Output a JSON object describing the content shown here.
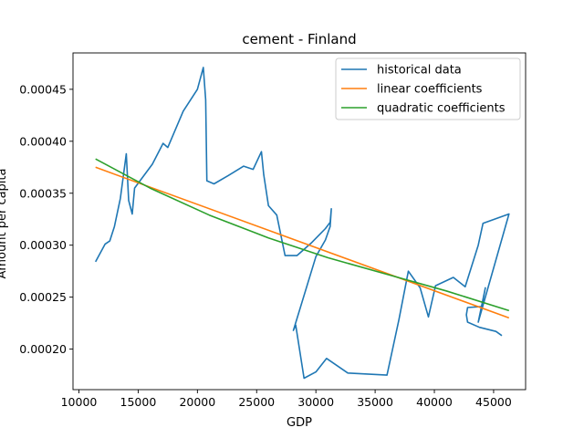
{
  "chart_data": {
    "type": "line",
    "title": "cement - Finland",
    "xlabel": "GDP",
    "ylabel": "Amount per capita",
    "xlim": [
      9500,
      47700
    ],
    "ylim": [
      0.000161,
      0.000485
    ],
    "xticks": [
      10000,
      15000,
      20000,
      25000,
      30000,
      35000,
      40000,
      45000
    ],
    "yticks": [
      0.0002,
      0.00025,
      0.0003,
      0.00035,
      0.0004,
      0.00045
    ],
    "xtick_labels": [
      "10000",
      "15000",
      "20000",
      "25000",
      "30000",
      "35000",
      "40000",
      "45000"
    ],
    "ytick_labels": [
      "0.00020",
      "0.00025",
      "0.00030",
      "0.00035",
      "0.00040",
      "0.00045"
    ],
    "grid": false,
    "legend_position": "upper right",
    "series": [
      {
        "name": "historical data",
        "color": "#1f77b4",
        "points": [
          [
            11400,
            0.000284
          ],
          [
            12200,
            0.000301
          ],
          [
            12600,
            0.000304
          ],
          [
            13000,
            0.000318
          ],
          [
            13500,
            0.000345
          ],
          [
            14000,
            0.000388
          ],
          [
            14200,
            0.000343
          ],
          [
            14500,
            0.00033
          ],
          [
            14700,
            0.000355
          ],
          [
            16200,
            0.000378
          ],
          [
            17100,
            0.000398
          ],
          [
            17500,
            0.000394
          ],
          [
            18800,
            0.000429
          ],
          [
            20000,
            0.00045
          ],
          [
            20500,
            0.000471
          ],
          [
            20700,
            0.00044
          ],
          [
            20800,
            0.000362
          ],
          [
            21400,
            0.000359
          ],
          [
            22600,
            0.000367
          ],
          [
            23900,
            0.000376
          ],
          [
            24700,
            0.000373
          ],
          [
            25400,
            0.00039
          ],
          [
            25600,
            0.000368
          ],
          [
            26000,
            0.000338
          ],
          [
            26700,
            0.000329
          ],
          [
            27400,
            0.00029
          ],
          [
            28400,
            0.00029
          ],
          [
            29600,
            0.000302
          ],
          [
            30800,
            0.000316
          ],
          [
            31200,
            0.000322
          ],
          [
            31300,
            0.000335
          ],
          [
            31200,
            0.000318
          ],
          [
            30800,
            0.000305
          ],
          [
            30000,
            0.000289
          ],
          [
            28100,
            0.000218
          ],
          [
            28300,
            0.000223
          ],
          [
            29000,
            0.000172
          ],
          [
            30000,
            0.000178
          ],
          [
            30900,
            0.000191
          ],
          [
            32700,
            0.000177
          ],
          [
            36000,
            0.000175
          ],
          [
            37000,
            0.000228
          ],
          [
            37800,
            0.000275
          ],
          [
            38800,
            0.000259
          ],
          [
            39500,
            0.000231
          ],
          [
            40100,
            0.000261
          ],
          [
            41600,
            0.000269
          ],
          [
            42600,
            0.00026
          ],
          [
            43700,
            0.0003
          ],
          [
            44100,
            0.000321
          ],
          [
            46300,
            0.00033
          ],
          [
            43700,
            0.000226
          ],
          [
            44300,
            0.000259
          ],
          [
            44000,
            0.000241
          ],
          [
            42800,
            0.00024
          ],
          [
            42700,
            0.000233
          ],
          [
            42800,
            0.000226
          ],
          [
            43800,
            0.000221
          ],
          [
            45200,
            0.000217
          ],
          [
            45700,
            0.000213
          ]
        ]
      },
      {
        "name": "linear coefficients",
        "color": "#ff7f0e",
        "points": [
          [
            11400,
            0.000375
          ],
          [
            46300,
            0.00023
          ]
        ]
      },
      {
        "name": "quadratic coefficients",
        "color": "#2ca02c",
        "points": [
          [
            11400,
            0.000383
          ],
          [
            16000,
            0.000355
          ],
          [
            21000,
            0.000329
          ],
          [
            26000,
            0.000307
          ],
          [
            31000,
            0.000288
          ],
          [
            36000,
            0.000272
          ],
          [
            41000,
            0.000256
          ],
          [
            46300,
            0.000237
          ]
        ]
      }
    ]
  }
}
